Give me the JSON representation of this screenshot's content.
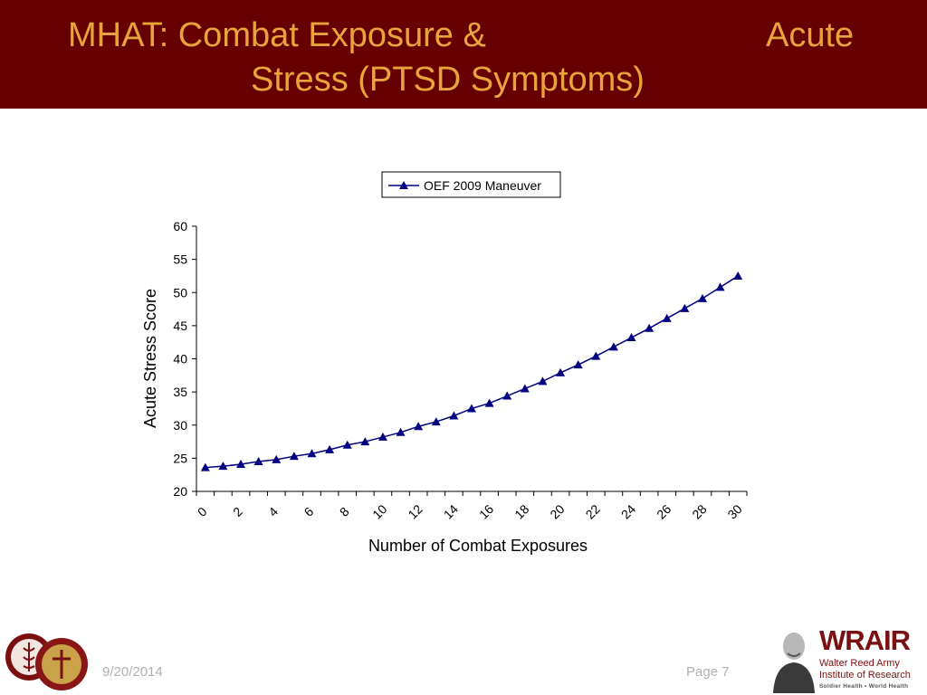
{
  "slide": {
    "title_part1": "MHAT: Combat Exposure &",
    "title_part2": "Acute",
    "title_part3": "Stress (PTSD Symptoms)",
    "date": "9/20/2014",
    "page": "Page 7"
  },
  "colors": {
    "title_band": "#660000",
    "title_text": "#E8A33A",
    "series": "#000080",
    "footer_text": "#b0b0b0"
  },
  "branding": {
    "wrair_name": "WRAIR",
    "wrair_line1": "Walter Reed Army",
    "wrair_line2": "Institute of Research",
    "wrair_tagline": "Soldier Health • World Health"
  },
  "chart_data": {
    "type": "line",
    "title": "",
    "xlabel": "Number of Combat Exposures",
    "ylabel": "Acute Stress Score",
    "x_ticks": [
      "0",
      "2",
      "4",
      "6",
      "8",
      "10",
      "12",
      "14",
      "16",
      "18",
      "20",
      "22",
      "24",
      "26",
      "28",
      "30"
    ],
    "y_ticks": [
      "20",
      "25",
      "30",
      "35",
      "40",
      "45",
      "50",
      "55",
      "60"
    ],
    "ylim": [
      20,
      60
    ],
    "legend_position": "top",
    "grid": false,
    "marker": "triangle",
    "series": [
      {
        "name": "OEF 2009 Maneuver",
        "x": [
          0,
          1,
          2,
          3,
          4,
          5,
          6,
          7,
          8,
          9,
          10,
          11,
          12,
          13,
          14,
          15,
          16,
          17,
          18,
          19,
          20,
          21,
          22,
          23,
          24,
          25,
          26,
          27,
          28,
          29,
          30
        ],
        "values": [
          23.6,
          23.8,
          24.1,
          24.5,
          24.8,
          25.3,
          25.7,
          26.3,
          27.0,
          27.5,
          28.2,
          28.9,
          29.8,
          30.5,
          31.4,
          32.5,
          33.3,
          34.4,
          35.5,
          36.6,
          37.9,
          39.1,
          40.4,
          41.8,
          43.2,
          44.6,
          46.1,
          47.6,
          49.1,
          50.8,
          52.5
        ]
      }
    ]
  }
}
